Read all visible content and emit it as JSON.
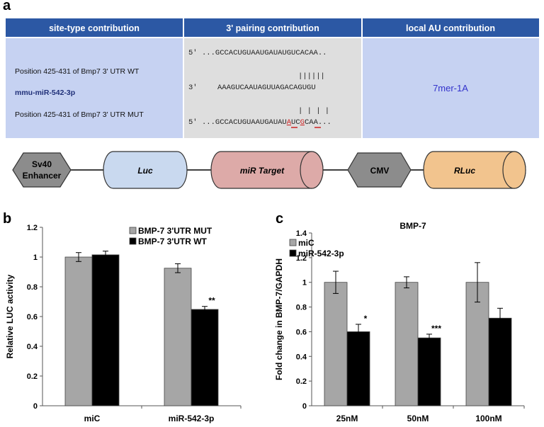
{
  "panels": {
    "a": "a",
    "b": "b",
    "c": "c"
  },
  "table": {
    "headers": [
      "site-type contribution",
      "3' pairing contribution",
      "local AU contribution"
    ],
    "row_labels": [
      "Position 425-431 of Bmp7 3' UTR  WT",
      "mmu-miR-542-3p",
      "Position 425-431 of Bmp7 3' UTR  MUT"
    ],
    "seq_wt_prefix": "5'",
    "seq_wt": "...GCCACUGUAAUGAUAUGUCACAA..",
    "pairing_wt": "||||||",
    "seq_mir_prefix": "3'",
    "seq_mir": "AAAGUCAAUAGUUAGACAGUGU",
    "pairing_mut": "|  | |  |",
    "seq_mut_prefix": "5'",
    "seq_mut_part1": "...GCCACUGUAAUGAUAU",
    "seq_mut_red1": "A",
    "seq_mut_part2": "UC",
    "seq_mut_red2": "G",
    "seq_mut_part3": "CAA...",
    "site_type": "7mer-1A"
  },
  "construct": {
    "elements": [
      "Sv40\nEnhancer",
      "Luc",
      "miR Target",
      "CMV",
      "RLuc"
    ],
    "colors": {
      "grey": "#8c8c8c",
      "luc": "#c9d9ef",
      "target": "#ddaaa8",
      "rluc": "#f2c48e"
    }
  },
  "chart_data": [
    {
      "type": "bar",
      "panel": "b",
      "title": "",
      "ylabel": "Relative LUC  activity",
      "xlabel": "",
      "ylim": [
        0,
        1.2
      ],
      "yticks": [
        "0",
        "0.2",
        "0.4",
        "0.6",
        "0.8",
        "1",
        "1.2"
      ],
      "categories": [
        "miC",
        "miR-542-3p"
      ],
      "series": [
        {
          "name": "BMP-7 3'UTR MUT",
          "color": "#a6a6a6",
          "values": [
            1.0,
            0.925
          ],
          "errors": [
            0.03,
            0.03
          ]
        },
        {
          "name": "BMP-7 3'UTR WT",
          "color": "#000000",
          "values": [
            1.015,
            0.648
          ],
          "errors": [
            0.025,
            0.02
          ]
        }
      ],
      "annotations": [
        "",
        "**"
      ],
      "legend": "top-right"
    },
    {
      "type": "bar",
      "panel": "c",
      "title": "BMP-7",
      "ylabel": "Fold change in BMP-7/GAPDH",
      "xlabel": "",
      "ylim": [
        0,
        1.4
      ],
      "yticks": [
        "0",
        "0.2",
        "0.4",
        "0.6",
        "0.8",
        "1",
        "1.2",
        "1.4"
      ],
      "categories": [
        "25nM",
        "50nM",
        "100nM"
      ],
      "series": [
        {
          "name": "miC",
          "color": "#a6a6a6",
          "values": [
            1.0,
            1.0,
            1.0
          ],
          "errors": [
            0.09,
            0.045,
            0.16
          ]
        },
        {
          "name": "miR-542-3p",
          "color": "#000000",
          "values": [
            0.6,
            0.55,
            0.71
          ],
          "errors": [
            0.06,
            0.03,
            0.08
          ]
        }
      ],
      "annotations": [
        "*",
        "***",
        ""
      ],
      "legend": "top-left"
    }
  ]
}
